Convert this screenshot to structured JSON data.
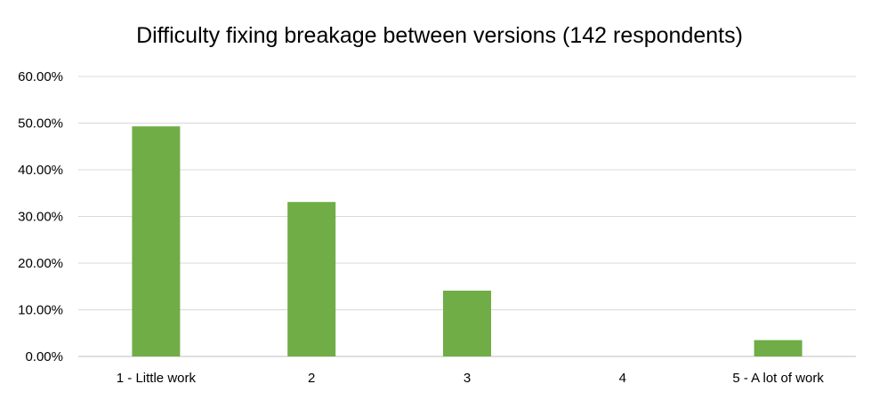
{
  "chart_data": {
    "type": "bar",
    "title": "Difficulty fixing breakage between versions (142 respondents)",
    "xlabel": "",
    "ylabel": "",
    "categories": [
      "1 - Little work",
      "2",
      "3",
      "4",
      "5 - A lot of work"
    ],
    "values": [
      49.3,
      33.1,
      14.1,
      0,
      3.5
    ],
    "ylim": [
      0,
      60
    ],
    "yticks": [
      "0.00%",
      "10.00%",
      "20.00%",
      "30.00%",
      "40.00%",
      "50.00%",
      "60.00%"
    ],
    "grid": true,
    "legend": "none",
    "bar_color": "#70ad47",
    "grid_color": "#d9d9d9"
  }
}
